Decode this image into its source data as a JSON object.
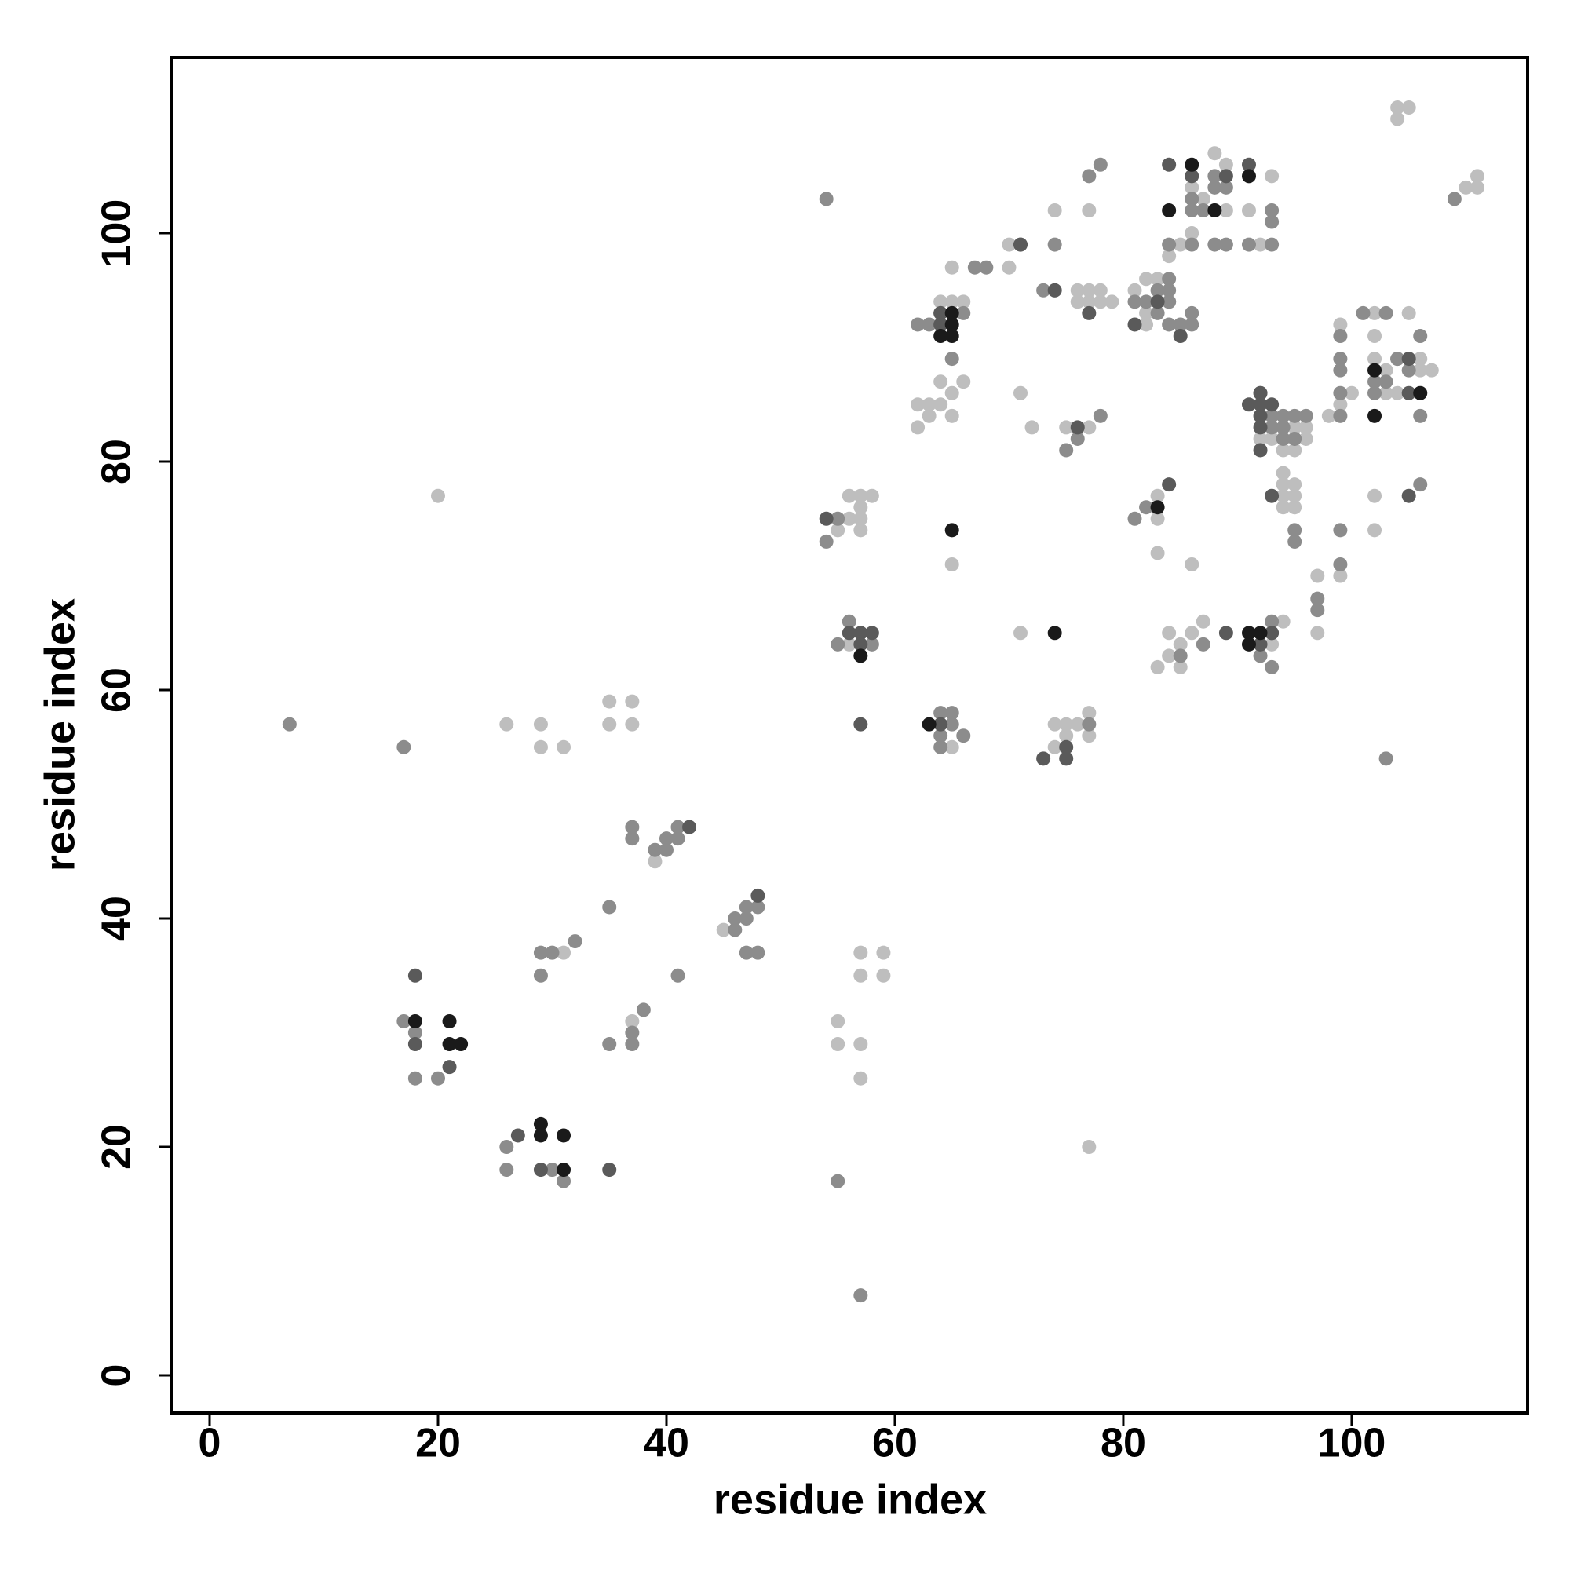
{
  "chart_data": {
    "type": "scatter",
    "xlabel": "residue index",
    "ylabel": "residue index",
    "xlim": [
      -3.3,
      115.4
    ],
    "ylim": [
      -3.3,
      115.4
    ],
    "xticks": [
      0,
      20,
      40,
      60,
      80,
      100
    ],
    "yticks": [
      0,
      20,
      40,
      60,
      80,
      100
    ],
    "series": [
      {
        "color": "#bebebe",
        "x": [
          20,
          77,
          26,
          29,
          29,
          31,
          35,
          37,
          35,
          37,
          31,
          37,
          39,
          45,
          55,
          55,
          57,
          57,
          57,
          59,
          57,
          59,
          55,
          56,
          57,
          57,
          56,
          57,
          58,
          57,
          56,
          65,
          64,
          65,
          66,
          65,
          64,
          66,
          65,
          62,
          63,
          64,
          63,
          65,
          62,
          65,
          70,
          70,
          71,
          72,
          71,
          74,
          77,
          76,
          77,
          78,
          76,
          77,
          78,
          79,
          75,
          77,
          74,
          75,
          76,
          77,
          75,
          77,
          74,
          88,
          89,
          93,
          86,
          87,
          89,
          91,
          86,
          85,
          92,
          84,
          81,
          82,
          83,
          82,
          82,
          83,
          83,
          83,
          86,
          84,
          86,
          87,
          85,
          84,
          83,
          85,
          94,
          93,
          95,
          96,
          92,
          93,
          96,
          94,
          95,
          94,
          94,
          95,
          94,
          95,
          94,
          95,
          97,
          97,
          99,
          98,
          99,
          100,
          99,
          102,
          102,
          102,
          106,
          103,
          106,
          107,
          103,
          104,
          105,
          102,
          102,
          104,
          104,
          105,
          110,
          111,
          111
        ],
        "y": [
          77,
          20,
          57,
          57,
          55,
          55,
          59,
          59,
          57,
          57,
          37,
          31,
          45,
          39,
          31,
          29,
          29,
          26,
          37,
          37,
          35,
          35,
          74,
          75,
          75,
          74,
          77,
          77,
          77,
          76,
          64,
          55,
          94,
          94,
          94,
          97,
          87,
          87,
          86,
          85,
          85,
          85,
          84,
          84,
          83,
          71,
          97,
          99,
          86,
          83,
          65,
          102,
          102,
          95,
          95,
          95,
          94,
          94,
          94,
          94,
          83,
          83,
          57,
          57,
          57,
          58,
          56,
          56,
          55,
          107,
          106,
          105,
          104,
          103,
          102,
          102,
          100,
          99,
          99,
          98,
          95,
          96,
          96,
          93,
          92,
          77,
          75,
          72,
          71,
          65,
          65,
          66,
          64,
          63,
          62,
          62,
          66,
          64,
          83,
          83,
          82,
          82,
          82,
          81,
          81,
          79,
          78,
          78,
          77,
          77,
          76,
          76,
          70,
          65,
          70,
          84,
          85,
          86,
          92,
          93,
          91,
          89,
          89,
          88,
          88,
          88,
          86,
          86,
          93,
          77,
          74,
          110,
          111,
          111,
          104,
          104,
          105
        ]
      },
      {
        "color": "#8c8c8c",
        "x": [
          7,
          17,
          57,
          55,
          17,
          18,
          18,
          20,
          26,
          26,
          30,
          31,
          29,
          30,
          32,
          29,
          35,
          38,
          37,
          37,
          35,
          37,
          37,
          39,
          40,
          40,
          41,
          41,
          41,
          46,
          46,
          47,
          47,
          48,
          47,
          48,
          54,
          55,
          54,
          55,
          56,
          58,
          64,
          65,
          64,
          65,
          66,
          64,
          62,
          63,
          64,
          66,
          65,
          67,
          68,
          71,
          73,
          74,
          74,
          77,
          78,
          76,
          75,
          78,
          77,
          88,
          88,
          89,
          86,
          86,
          87,
          88,
          93,
          93,
          84,
          86,
          88,
          89,
          91,
          93,
          84,
          81,
          82,
          83,
          84,
          84,
          84,
          83,
          84,
          85,
          86,
          86,
          81,
          82,
          87,
          85,
          93,
          92,
          92,
          93,
          93,
          94,
          95,
          96,
          93,
          94,
          94,
          95,
          95,
          95,
          97,
          97,
          99,
          99,
          99,
          99,
          99,
          99,
          99,
          101,
          103,
          104,
          104,
          105,
          102,
          103,
          102,
          106,
          106,
          106,
          103,
          109
        ],
        "y": [
          57,
          55,
          7,
          17,
          31,
          30,
          26,
          26,
          20,
          18,
          18,
          17,
          37,
          37,
          38,
          35,
          41,
          32,
          30,
          29,
          29,
          48,
          47,
          46,
          46,
          47,
          47,
          48,
          35,
          39,
          40,
          40,
          41,
          41,
          37,
          37,
          103,
          75,
          73,
          64,
          66,
          64,
          58,
          58,
          56,
          57,
          56,
          55,
          92,
          92,
          93,
          93,
          89,
          97,
          97,
          99,
          95,
          95,
          99,
          105,
          106,
          82,
          81,
          84,
          57,
          105,
          104,
          104,
          103,
          102,
          102,
          102,
          102,
          101,
          99,
          99,
          99,
          99,
          99,
          99,
          94,
          94,
          94,
          95,
          95,
          96,
          94,
          93,
          92,
          92,
          93,
          92,
          75,
          76,
          64,
          63,
          66,
          86,
          63,
          62,
          84,
          84,
          84,
          84,
          83,
          83,
          82,
          82,
          74,
          73,
          68,
          67,
          74,
          71,
          84,
          86,
          88,
          89,
          91,
          93,
          93,
          89,
          89,
          88,
          87,
          87,
          86,
          84,
          91,
          78,
          54,
          103
        ]
      },
      {
        "color": "#5a5a5a",
        "x": [
          18,
          18,
          21,
          27,
          29,
          35,
          42,
          48,
          54,
          56,
          57,
          57,
          58,
          57,
          64,
          64,
          64,
          71,
          74,
          77,
          76,
          75,
          75,
          73,
          84,
          86,
          91,
          89,
          83,
          81,
          85,
          84,
          89,
          93,
          92,
          91,
          92,
          92,
          93,
          92,
          93,
          92,
          92,
          93,
          105,
          105,
          105
        ],
        "y": [
          35,
          29,
          27,
          21,
          18,
          18,
          48,
          42,
          75,
          65,
          65,
          64,
          65,
          57,
          57,
          93,
          92,
          99,
          95,
          93,
          83,
          55,
          54,
          54,
          106,
          105,
          106,
          105,
          94,
          92,
          91,
          78,
          65,
          65,
          64,
          85,
          86,
          85,
          85,
          84,
          77,
          83,
          81,
          65,
          89,
          86,
          77
        ]
      },
      {
        "color": "#1a1a1a",
        "x": [
          18,
          21,
          21,
          22,
          29,
          29,
          31,
          31,
          57,
          63,
          65,
          65,
          64,
          65,
          65,
          74,
          86,
          91,
          84,
          88,
          83,
          91,
          92,
          91,
          102,
          106,
          102
        ],
        "y": [
          31,
          31,
          29,
          29,
          22,
          21,
          21,
          18,
          63,
          57,
          93,
          92,
          91,
          91,
          74,
          65,
          106,
          105,
          102,
          102,
          76,
          65,
          65,
          64,
          88,
          86,
          84
        ]
      }
    ]
  }
}
